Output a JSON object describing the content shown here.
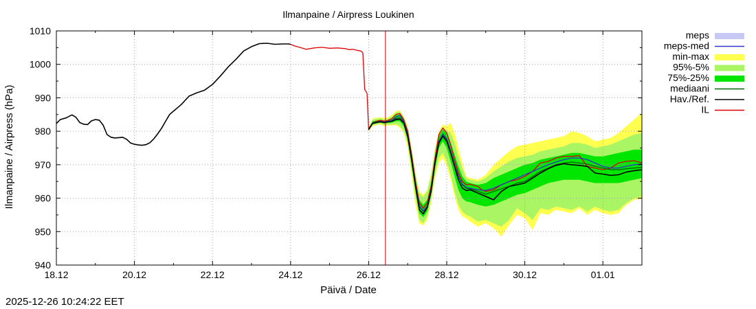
{
  "chart_data": {
    "type": "line",
    "title": "Ilmanpaine / Airpress Loukinen",
    "xlabel": "Päivä / Date",
    "ylabel": "Ilmanpaine / Airpress (hPa)",
    "ylim": [
      940,
      1010
    ],
    "yticks": [
      940,
      950,
      960,
      970,
      980,
      990,
      1000,
      1010
    ],
    "xlim": [
      0,
      15
    ],
    "x_unit": "days since 18.12 00:00",
    "xticks": [
      {
        "x": 0,
        "label": "18.12"
      },
      {
        "x": 2,
        "label": "20.12"
      },
      {
        "x": 4,
        "label": "22.12"
      },
      {
        "x": 6,
        "label": "24.12"
      },
      {
        "x": 8,
        "label": "26.12"
      },
      {
        "x": 10,
        "label": "28.12"
      },
      {
        "x": 12,
        "label": "30.12"
      },
      {
        "x": 14,
        "label": "01.01"
      }
    ],
    "grid": true,
    "legend_position": "right",
    "now_line_x": 8.43,
    "colors": {
      "meps": "#c8c8f5",
      "meps_med": "#3232c8",
      "min_max": "#ffff50",
      "p95_5": "#aaf564",
      "p75_25": "#00e600",
      "mediaani": "#006400",
      "observed": "#000000",
      "il": "#dc0000",
      "now_line": "#cc0000",
      "grid": "#a0a0a0"
    },
    "legend": [
      {
        "key": "meps",
        "label": "meps",
        "style": "fill"
      },
      {
        "key": "meps_med",
        "label": "meps-med",
        "style": "line"
      },
      {
        "key": "min_max",
        "label": "min-max",
        "style": "fill"
      },
      {
        "key": "p95_5",
        "label": "95%-5%",
        "style": "fill"
      },
      {
        "key": "p75_25",
        "label": "75%-25%",
        "style": "fill"
      },
      {
        "key": "mediaani",
        "label": "mediaani",
        "style": "line"
      },
      {
        "key": "observed",
        "label": "Hav./Ref.",
        "style": "line"
      },
      {
        "key": "il",
        "label": "IL",
        "style": "line"
      }
    ],
    "series": [
      {
        "name": "Hav./Ref.",
        "key": "observed",
        "x": [
          0,
          0.1,
          0.25,
          0.4,
          0.5,
          0.6,
          0.7,
          0.8,
          0.9,
          1.0,
          1.1,
          1.2,
          1.3,
          1.4,
          1.5,
          1.6,
          1.7,
          1.8,
          1.9,
          2.0,
          2.1,
          2.2,
          2.3,
          2.4,
          2.5,
          2.6,
          2.7,
          2.8,
          2.9,
          3.0,
          3.2,
          3.4,
          3.6,
          3.8,
          4.0,
          4.2,
          4.4,
          4.6,
          4.8,
          5.0,
          5.2,
          5.4,
          5.6,
          5.8,
          5.95,
          6.0
        ],
        "y": [
          982.3,
          983.5,
          984.0,
          984.9,
          984.2,
          982.6,
          982.1,
          982.0,
          983.1,
          983.5,
          983.3,
          981.8,
          979.0,
          978.2,
          978.0,
          978.1,
          978.2,
          977.6,
          976.5,
          976.1,
          975.9,
          975.8,
          976.0,
          976.6,
          977.8,
          979.3,
          981.0,
          983.0,
          985.0,
          986.0,
          988.0,
          990.5,
          991.5,
          992.3,
          994.0,
          996.5,
          999.2,
          1001.5,
          1004.0,
          1005.3,
          1006.2,
          1006.3,
          1006.0,
          1006.1,
          1006.1,
          1006.0
        ]
      },
      {
        "name": "IL",
        "key": "il",
        "x": [
          6.0,
          6.1,
          6.2,
          6.4,
          6.6,
          6.8,
          7.0,
          7.2,
          7.4,
          7.5,
          7.6,
          7.7,
          7.8,
          7.85,
          7.9,
          7.95,
          7.96,
          8.0,
          8.1,
          8.2,
          8.3,
          8.4,
          8.5,
          8.6,
          8.7,
          8.8,
          8.9,
          9.0,
          9.1,
          9.2,
          9.3,
          9.4,
          9.5,
          9.6,
          9.7,
          9.8,
          9.9,
          10.0,
          10.1,
          10.2,
          10.3,
          10.4,
          10.5,
          10.6,
          10.7,
          10.8,
          10.9,
          11.0,
          11.2,
          11.4,
          11.6,
          11.8,
          12.0,
          12.2,
          12.4,
          12.6,
          12.8,
          13.0,
          13.2,
          13.4,
          13.6,
          13.8,
          14.0,
          14.2,
          14.4,
          14.6,
          14.8,
          15.0
        ],
        "y": [
          1006.0,
          1005.5,
          1005.2,
          1004.5,
          1004.9,
          1005.1,
          1004.8,
          1004.9,
          1004.7,
          1004.4,
          1004.5,
          1004.2,
          1004.0,
          1003.5,
          992.5,
          991.5,
          991.2,
          980.5,
          982.5,
          983.0,
          983.3,
          983.0,
          983.3,
          983.8,
          985.0,
          985.3,
          983.5,
          980.0,
          973.0,
          965.0,
          958.5,
          957.0,
          958.5,
          963.5,
          972.0,
          979.0,
          981.0,
          979.5,
          976.0,
          971.5,
          967.5,
          965.0,
          964.0,
          964.2,
          963.8,
          963.5,
          962.5,
          962.0,
          962.5,
          964.0,
          965.0,
          965.5,
          966.5,
          968.0,
          970.5,
          971.0,
          972.0,
          972.5,
          972.5,
          972.7,
          969.5,
          969.0,
          968.5,
          969.0,
          970.5,
          971.0,
          971.2,
          970.5
        ]
      },
      {
        "name": "mediaani",
        "key": "mediaani",
        "x": [
          8.0,
          8.1,
          8.2,
          8.3,
          8.4,
          8.5,
          8.6,
          8.7,
          8.8,
          8.9,
          9.0,
          9.1,
          9.2,
          9.3,
          9.4,
          9.5,
          9.6,
          9.7,
          9.8,
          9.9,
          10.0,
          10.1,
          10.2,
          10.3,
          10.4,
          10.5,
          10.6,
          10.8,
          11.0,
          11.2,
          11.4,
          11.6,
          11.8,
          12.0,
          12.2,
          12.4,
          12.6,
          12.8,
          13.0,
          13.2,
          13.4,
          13.6,
          13.8,
          14.0,
          14.2,
          14.4,
          14.6,
          14.8,
          15.0
        ],
        "y": [
          980.8,
          982.5,
          982.8,
          983.0,
          982.8,
          983.0,
          983.2,
          983.8,
          984.0,
          982.8,
          979.0,
          972.0,
          964.0,
          957.5,
          956.0,
          957.5,
          962.5,
          971.0,
          977.0,
          979.0,
          977.5,
          974.0,
          970.0,
          966.5,
          964.0,
          963.0,
          962.8,
          962.0,
          961.2,
          962.0,
          962.8,
          963.5,
          964.5,
          965.0,
          966.5,
          968.0,
          969.0,
          970.0,
          970.5,
          970.8,
          970.5,
          970.2,
          969.5,
          969.0,
          968.5,
          968.5,
          968.8,
          969.0,
          969.2
        ]
      },
      {
        "name": "meps-med",
        "key": "meps_med",
        "x": [
          8.0,
          8.1,
          8.2,
          8.3,
          8.4,
          8.5,
          8.6,
          8.7,
          8.8,
          8.9,
          9.0,
          9.1,
          9.2,
          9.3,
          9.4,
          9.5,
          9.6,
          9.7,
          9.8,
          9.9,
          10.0,
          10.1,
          10.2,
          10.3,
          10.4,
          10.5,
          10.6,
          10.8,
          11.0,
          11.2,
          11.4,
          11.6,
          11.8,
          12.0,
          12.2,
          12.4,
          12.6,
          12.8,
          13.0,
          13.2,
          13.4,
          13.6,
          13.8,
          14.0,
          14.2,
          14.4,
          14.6,
          14.8,
          15.0
        ],
        "y": [
          980.6,
          982.4,
          982.7,
          982.9,
          982.8,
          982.9,
          983.3,
          984.2,
          984.8,
          983.0,
          979.2,
          972.0,
          964.0,
          957.6,
          956.2,
          957.6,
          962.6,
          971.0,
          977.0,
          979.2,
          977.8,
          974.2,
          970.2,
          966.6,
          964.2,
          963.2,
          963.0,
          962.5,
          962.3,
          963.0,
          964.0,
          965.0,
          966.0,
          967.0,
          968.0,
          969.0,
          970.0,
          970.8,
          971.5,
          972.0,
          972.0,
          971.5,
          970.5,
          969.5,
          969.0,
          969.0,
          969.5,
          970.0,
          970.2
        ]
      },
      {
        "name": "Hav./Ref. (forecast)",
        "key": "observed",
        "x": [
          8.0,
          8.1,
          8.2,
          8.3,
          8.4,
          8.5,
          8.6,
          8.7,
          8.8,
          8.9,
          9.0,
          9.1,
          9.2,
          9.3,
          9.4,
          9.5,
          9.6,
          9.7,
          9.8,
          9.9,
          10.0,
          10.1,
          10.2,
          10.3,
          10.4,
          10.5,
          10.6,
          10.8,
          11.0,
          11.2,
          11.4,
          11.6,
          11.8,
          12.0,
          12.2,
          12.4,
          12.6,
          12.8,
          13.0,
          13.2,
          13.4,
          13.6,
          13.8,
          14.0,
          14.2,
          14.4,
          14.6,
          14.8,
          15.0
        ],
        "y": [
          980.5,
          982.3,
          982.6,
          982.8,
          982.6,
          982.8,
          983.0,
          983.5,
          983.6,
          982.5,
          978.5,
          971.5,
          963.5,
          956.5,
          955.3,
          957.2,
          962.0,
          970.5,
          976.5,
          978.5,
          977.0,
          973.5,
          969.5,
          965.5,
          963.0,
          962.3,
          962.5,
          961.5,
          960.5,
          959.5,
          962.0,
          963.5,
          964.0,
          964.5,
          966.0,
          967.5,
          968.8,
          969.8,
          970.3,
          970.0,
          969.8,
          969.5,
          967.5,
          967.2,
          966.8,
          967.0,
          967.8,
          968.2,
          968.5
        ]
      }
    ],
    "bands": [
      {
        "name": "min-max",
        "key": "min_max",
        "x": [
          8.0,
          8.1,
          8.2,
          8.3,
          8.4,
          8.5,
          8.6,
          8.7,
          8.8,
          8.9,
          9.0,
          9.1,
          9.2,
          9.3,
          9.4,
          9.5,
          9.6,
          9.7,
          9.8,
          9.9,
          10.0,
          10.1,
          10.2,
          10.3,
          10.4,
          10.5,
          10.6,
          10.8,
          11.0,
          11.2,
          11.4,
          11.6,
          11.8,
          12.0,
          12.2,
          12.4,
          12.6,
          12.8,
          13.0,
          13.2,
          13.4,
          13.6,
          13.8,
          14.0,
          14.2,
          14.4,
          14.6,
          14.8,
          15.0
        ],
        "low": [
          980.0,
          981.5,
          981.8,
          982.0,
          981.5,
          981.8,
          981.7,
          981.8,
          981.0,
          979.5,
          975.0,
          966.5,
          958.0,
          952.5,
          951.8,
          953.5,
          958.5,
          966.0,
          970.5,
          972.0,
          969.5,
          965.5,
          960.5,
          956.5,
          954.5,
          954.0,
          953.0,
          951.5,
          952.5,
          951.0,
          948.5,
          952.0,
          955.0,
          954.0,
          950.5,
          955.5,
          955.0,
          956.5,
          956.0,
          955.5,
          957.0,
          955.0,
          956.5,
          955.5,
          955.0,
          955.5,
          958.0,
          959.5,
          959.8
        ],
        "high": [
          981.0,
          983.8,
          984.0,
          984.2,
          984.0,
          984.2,
          985.0,
          986.0,
          986.2,
          984.5,
          981.5,
          975.0,
          967.5,
          962.0,
          961.0,
          962.5,
          967.5,
          975.0,
          980.0,
          982.0,
          981.5,
          982.5,
          979.5,
          975.0,
          970.5,
          966.5,
          966.0,
          965.5,
          967.0,
          970.0,
          972.0,
          974.0,
          975.5,
          976.0,
          976.5,
          977.0,
          977.5,
          978.0,
          978.5,
          980.0,
          979.5,
          978.5,
          977.0,
          977.5,
          978.0,
          979.5,
          981.5,
          983.5,
          985.5
        ]
      },
      {
        "name": "95%-5%",
        "key": "p95_5",
        "x": [
          8.0,
          8.1,
          8.2,
          8.3,
          8.4,
          8.5,
          8.6,
          8.7,
          8.8,
          8.9,
          9.0,
          9.1,
          9.2,
          9.3,
          9.4,
          9.5,
          9.6,
          9.7,
          9.8,
          9.9,
          10.0,
          10.1,
          10.2,
          10.3,
          10.4,
          10.5,
          10.6,
          10.8,
          11.0,
          11.2,
          11.4,
          11.6,
          11.8,
          12.0,
          12.2,
          12.4,
          12.6,
          12.8,
          13.0,
          13.2,
          13.4,
          13.6,
          13.8,
          14.0,
          14.2,
          14.4,
          14.6,
          14.8,
          15.0
        ],
        "low": [
          980.2,
          981.8,
          982.0,
          982.3,
          981.8,
          982.0,
          982.0,
          982.2,
          981.5,
          980.2,
          976.0,
          968.0,
          960.0,
          953.5,
          952.5,
          954.5,
          959.5,
          967.0,
          972.0,
          973.5,
          971.0,
          967.0,
          962.0,
          958.0,
          956.0,
          955.0,
          954.5,
          953.0,
          953.5,
          952.5,
          951.5,
          953.5,
          957.0,
          955.5,
          953.5,
          957.0,
          956.5,
          957.5,
          957.0,
          956.5,
          957.5,
          956.0,
          957.5,
          956.5,
          956.0,
          956.5,
          958.5,
          960.0,
          960.5
        ],
        "high": [
          980.8,
          983.5,
          983.7,
          983.9,
          983.6,
          983.8,
          984.6,
          985.6,
          985.8,
          984.2,
          981.0,
          974.5,
          967.0,
          961.5,
          960.3,
          962.0,
          967.0,
          974.5,
          979.5,
          981.2,
          980.2,
          979.5,
          976.5,
          972.5,
          969.0,
          966.0,
          965.5,
          965.0,
          966.0,
          968.0,
          969.5,
          971.0,
          972.0,
          972.5,
          973.0,
          974.0,
          974.5,
          975.0,
          975.5,
          976.5,
          976.5,
          976.0,
          975.0,
          975.5,
          976.0,
          977.0,
          978.0,
          979.0,
          979.5
        ]
      },
      {
        "name": "75%-25%",
        "key": "p75_25",
        "x": [
          8.0,
          8.1,
          8.2,
          8.3,
          8.4,
          8.5,
          8.6,
          8.7,
          8.8,
          8.9,
          9.0,
          9.1,
          9.2,
          9.3,
          9.4,
          9.5,
          9.6,
          9.7,
          9.8,
          9.9,
          10.0,
          10.1,
          10.2,
          10.3,
          10.4,
          10.5,
          10.6,
          10.8,
          11.0,
          11.2,
          11.4,
          11.6,
          11.8,
          12.0,
          12.2,
          12.4,
          12.6,
          12.8,
          13.0,
          13.2,
          13.4,
          13.6,
          13.8,
          14.0,
          14.2,
          14.4,
          14.6,
          14.8,
          15.0
        ],
        "low": [
          980.4,
          982.1,
          982.4,
          982.6,
          982.3,
          982.5,
          982.6,
          983.0,
          983.0,
          981.5,
          977.5,
          970.0,
          962.0,
          955.5,
          954.3,
          956.0,
          961.0,
          969.0,
          975.0,
          977.0,
          975.0,
          971.0,
          966.5,
          962.5,
          960.0,
          959.0,
          958.8,
          958.0,
          957.5,
          958.0,
          959.0,
          960.0,
          961.0,
          961.5,
          962.5,
          963.5,
          964.5,
          965.0,
          965.5,
          965.5,
          965.5,
          965.0,
          964.5,
          964.5,
          964.5,
          964.5,
          965.0,
          965.5,
          966.0
        ],
        "high": [
          980.6,
          983.0,
          983.2,
          983.4,
          983.2,
          983.4,
          983.9,
          984.8,
          985.0,
          983.5,
          980.2,
          973.5,
          965.5,
          959.5,
          958.0,
          959.5,
          964.5,
          972.5,
          978.5,
          980.5,
          979.5,
          976.5,
          973.0,
          969.5,
          966.5,
          965.0,
          964.5,
          964.0,
          964.5,
          966.0,
          967.0,
          968.0,
          969.0,
          970.0,
          970.5,
          971.5,
          972.0,
          972.5,
          973.0,
          973.5,
          973.5,
          973.0,
          972.5,
          972.5,
          973.0,
          973.5,
          974.0,
          974.5,
          974.5
        ]
      }
    ]
  },
  "footer": {
    "timestamp": "2025-12-26 10:24:22 EET"
  }
}
